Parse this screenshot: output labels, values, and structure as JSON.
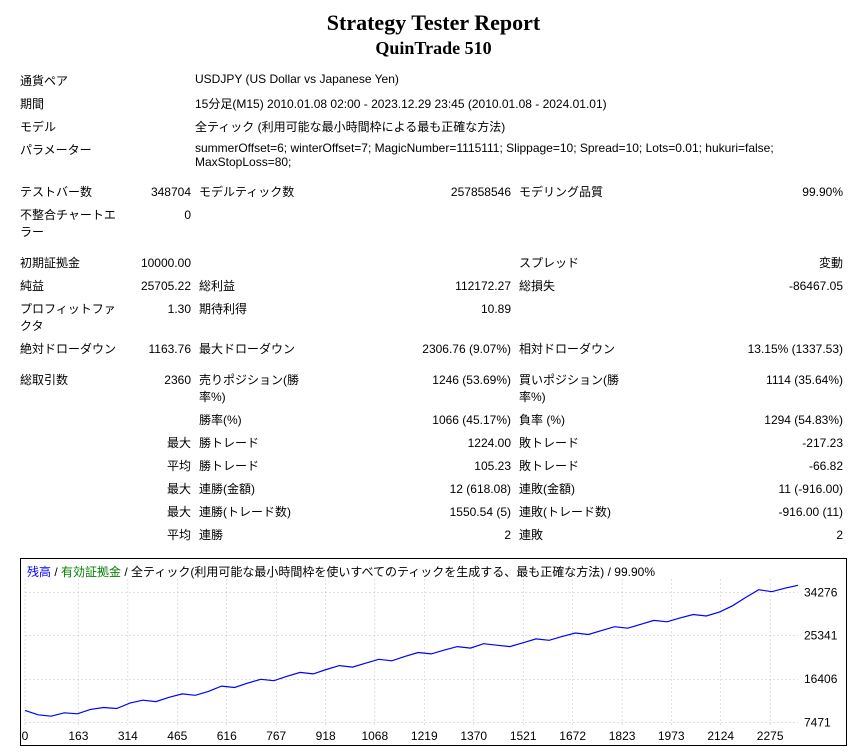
{
  "header": {
    "title": "Strategy Tester Report",
    "subtitle": "QuinTrade 510"
  },
  "info": {
    "pair_label": "通貨ペア",
    "pair_value": "USDJPY (US Dollar vs Japanese Yen)",
    "period_label": "期間",
    "period_value": "15分足(M15) 2010.01.08 02:00 - 2023.12.29 23:45 (2010.01.08 - 2024.01.01)",
    "model_label": "モデル",
    "model_value": "全ティック (利用可能な最小時間枠による最も正確な方法)",
    "param_label": "パラメーター",
    "param_value": "summerOffset=6; winterOffset=7; MagicNumber=1115111; Slippage=10; Spread=10; Lots=0.01; hukuri=false; MaxStopLoss=80;"
  },
  "stats": {
    "r1": {
      "l1": "テストバー数",
      "v1": "348704",
      "l2": "モデルティック数",
      "v2": "257858546",
      "l3": "モデリング品質",
      "v3": "99.90%"
    },
    "r2": {
      "l1": "不整合チャートエラー",
      "v1": "0"
    },
    "r3": {
      "l1": "初期証拠金",
      "v1": "10000.00",
      "l3": "スプレッド",
      "v3": "変動"
    },
    "r4": {
      "l1": "純益",
      "v1": "25705.22",
      "l2": "総利益",
      "v2": "112172.27",
      "l3": "総損失",
      "v3": "-86467.05"
    },
    "r5": {
      "l1": "プロフィットファクタ",
      "v1": "1.30",
      "l2": "期待利得",
      "v2": "10.89"
    },
    "r6": {
      "l1": "絶対ドローダウン",
      "v1": "1163.76",
      "l2": "最大ドローダウン",
      "v2": "2306.76 (9.07%)",
      "l3": "相対ドローダウン",
      "v3": "13.15% (1337.53)"
    },
    "r7": {
      "l1": "総取引数",
      "v1": "2360",
      "l2": "売りポジション(勝率%)",
      "v2": "1246 (53.69%)",
      "l3": "買いポジション(勝率%)",
      "v3": "1114 (35.64%)"
    },
    "r8": {
      "l2": "勝率(%)",
      "v2": "1066 (45.17%)",
      "l3": "負率 (%)",
      "v3": "1294 (54.83%)"
    },
    "r9": {
      "pre": "最大",
      "l2": "勝トレード",
      "v2": "1224.00",
      "l3": "敗トレード",
      "v3": "-217.23"
    },
    "r10": {
      "pre": "平均",
      "l2": "勝トレード",
      "v2": "105.23",
      "l3": "敗トレード",
      "v3": "-66.82"
    },
    "r11": {
      "pre": "最大",
      "l2": "連勝(金額)",
      "v2": "12 (618.08)",
      "l3": "連敗(金額)",
      "v3": "11 (-916.00)"
    },
    "r12": {
      "pre": "最大",
      "l2": "連勝(トレード数)",
      "v2": "1550.54 (5)",
      "l3": "連敗(トレード数)",
      "v3": "-916.00 (11)"
    },
    "r13": {
      "pre": "平均",
      "l2": "連勝",
      "v2": "2",
      "l3": "連敗",
      "v3": "2"
    }
  },
  "chart": {
    "legend": {
      "balance": "残高",
      "equity": "有効証拠金",
      "rest": " / 全ティック(利用可能な最小時間枠を使いすべてのティックを生成する、最も正確な方法) / 99.90%"
    },
    "x_ticks": [
      "0",
      "163",
      "314",
      "465",
      "616",
      "767",
      "918",
      "1068",
      "1219",
      "1370",
      "1521",
      "1672",
      "1823",
      "1973",
      "2124",
      "2275"
    ],
    "y_ticks": [
      "34276",
      "25341",
      "16406",
      "7471"
    ],
    "line_color": "#0000ff",
    "grid_color": "#c0c0c0",
    "background": "#ffffff",
    "y_min": 7000,
    "y_max": 37000,
    "x_max": 2360,
    "series": [
      {
        "x": 0,
        "y": 10000
      },
      {
        "x": 40,
        "y": 9100
      },
      {
        "x": 80,
        "y": 8800
      },
      {
        "x": 120,
        "y": 9500
      },
      {
        "x": 160,
        "y": 9300
      },
      {
        "x": 200,
        "y": 10200
      },
      {
        "x": 240,
        "y": 10600
      },
      {
        "x": 280,
        "y": 10400
      },
      {
        "x": 320,
        "y": 11500
      },
      {
        "x": 360,
        "y": 12100
      },
      {
        "x": 400,
        "y": 11800
      },
      {
        "x": 440,
        "y": 12700
      },
      {
        "x": 480,
        "y": 13400
      },
      {
        "x": 520,
        "y": 13100
      },
      {
        "x": 560,
        "y": 13900
      },
      {
        "x": 600,
        "y": 15000
      },
      {
        "x": 640,
        "y": 14700
      },
      {
        "x": 680,
        "y": 15600
      },
      {
        "x": 720,
        "y": 16400
      },
      {
        "x": 760,
        "y": 16100
      },
      {
        "x": 800,
        "y": 17000
      },
      {
        "x": 840,
        "y": 17800
      },
      {
        "x": 880,
        "y": 17500
      },
      {
        "x": 920,
        "y": 18400
      },
      {
        "x": 960,
        "y": 19200
      },
      {
        "x": 1000,
        "y": 18900
      },
      {
        "x": 1040,
        "y": 19700
      },
      {
        "x": 1080,
        "y": 20500
      },
      {
        "x": 1120,
        "y": 20200
      },
      {
        "x": 1160,
        "y": 21100
      },
      {
        "x": 1200,
        "y": 21900
      },
      {
        "x": 1240,
        "y": 21600
      },
      {
        "x": 1280,
        "y": 22400
      },
      {
        "x": 1320,
        "y": 23100
      },
      {
        "x": 1360,
        "y": 22800
      },
      {
        "x": 1400,
        "y": 23700
      },
      {
        "x": 1440,
        "y": 23400
      },
      {
        "x": 1480,
        "y": 23100
      },
      {
        "x": 1520,
        "y": 23900
      },
      {
        "x": 1560,
        "y": 24700
      },
      {
        "x": 1600,
        "y": 24400
      },
      {
        "x": 1640,
        "y": 25200
      },
      {
        "x": 1680,
        "y": 25900
      },
      {
        "x": 1720,
        "y": 25600
      },
      {
        "x": 1760,
        "y": 26400
      },
      {
        "x": 1800,
        "y": 27200
      },
      {
        "x": 1840,
        "y": 26900
      },
      {
        "x": 1880,
        "y": 27700
      },
      {
        "x": 1920,
        "y": 28500
      },
      {
        "x": 1960,
        "y": 28200
      },
      {
        "x": 2000,
        "y": 29000
      },
      {
        "x": 2040,
        "y": 29700
      },
      {
        "x": 2080,
        "y": 29400
      },
      {
        "x": 2120,
        "y": 30200
      },
      {
        "x": 2160,
        "y": 31500
      },
      {
        "x": 2200,
        "y": 33200
      },
      {
        "x": 2240,
        "y": 34800
      },
      {
        "x": 2280,
        "y": 34400
      },
      {
        "x": 2320,
        "y": 35100
      },
      {
        "x": 2360,
        "y": 35700
      }
    ]
  }
}
